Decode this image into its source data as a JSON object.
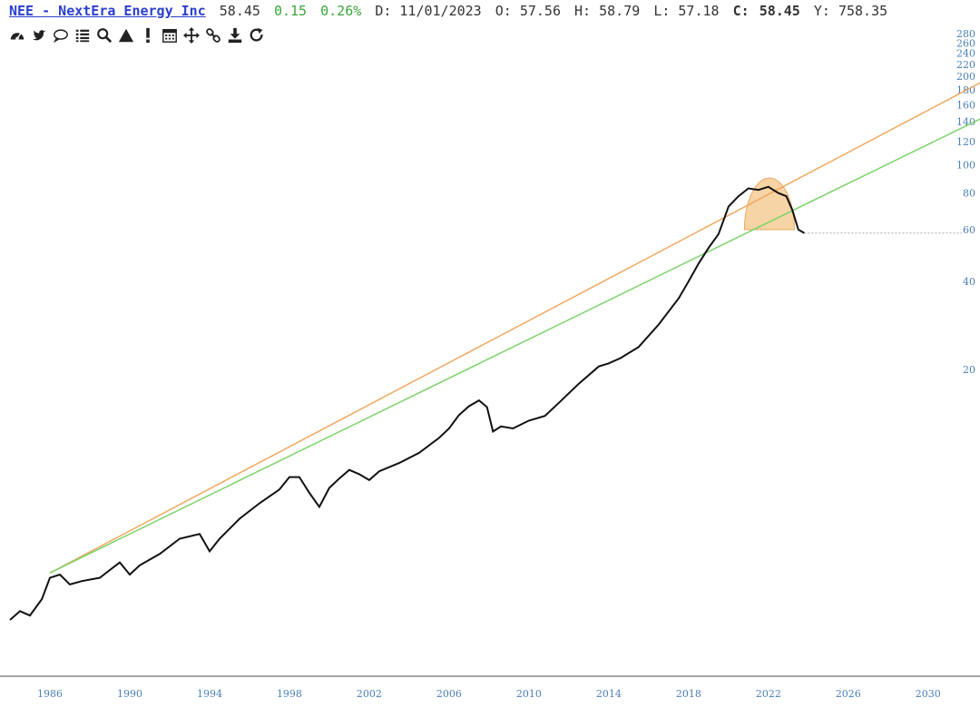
{
  "header": {
    "symbol_title": "NEE - NextEra Energy Inc",
    "last": "58.45",
    "change": "0.15",
    "change_pct": "0.26%",
    "date": "D: 11/01/2023",
    "open": "O: 57.56",
    "high": "H: 58.79",
    "low": "L: 57.18",
    "close_label": "C:",
    "close_value": "58.45",
    "y_readout": "Y: 758.35"
  },
  "toolbar": {
    "icons": [
      "dashboard-icon",
      "twitter-icon",
      "comment-icon",
      "list-icon",
      "search-icon",
      "triangle-icon",
      "exclamation-icon",
      "calendar-icon",
      "move-icon",
      "link-icon",
      "download-icon",
      "refresh-icon"
    ]
  },
  "colors": {
    "price": "#111111",
    "upper_trendline": "#f0a860",
    "lower_trendline": "#7cd36a",
    "top_highlight": "#f5c98f",
    "axis": "#4a7fb5",
    "link": "#2b3fcf",
    "up": "#3aa63a"
  },
  "chart_data": {
    "type": "line",
    "title": "",
    "y_scale": "log",
    "ylim": [
      1.8,
      290
    ],
    "xlim": [
      1983.5,
      2032.6
    ],
    "x_ticks": [
      "1986",
      "1990",
      "1994",
      "1998",
      "2002",
      "2006",
      "2010",
      "2014",
      "2018",
      "2022",
      "2026",
      "2030"
    ],
    "y_ticks": [
      "280",
      "260",
      "240",
      "220",
      "200",
      "180",
      "160",
      "140",
      "120",
      "100",
      "80",
      "60",
      "40",
      "20"
    ],
    "last_price_line": 58.45,
    "series": [
      {
        "x": [
          1984.0,
          1984.5,
          1985.0,
          1985.6,
          1986.0,
          1986.5,
          1987.0,
          1987.6,
          1988.5,
          1989.5,
          1990.0,
          1990.5,
          1991.5,
          1992.5,
          1993.5,
          1994.0,
          1994.5,
          1995.5,
          1996.5,
          1997.5,
          1998.0,
          1998.5,
          1999.0,
          1999.5,
          2000.0,
          2000.5,
          2001.0,
          2001.5,
          2002.0,
          2002.5,
          2003.5,
          2004.5,
          2005.5,
          2006.0,
          2006.5,
          2007.0,
          2007.5,
          2007.9,
          2008.2,
          2008.6,
          2009.2,
          2010.0,
          2010.8,
          2011.5,
          2012.5,
          2013.5,
          2014.0,
          2014.6,
          2015.5,
          2016.5,
          2017.5,
          2018.0,
          2018.5,
          2019.0,
          2019.5,
          2020.0,
          2020.5,
          2021.0,
          2021.5,
          2022.0,
          2022.5,
          2022.9,
          2023.2,
          2023.5,
          2023.8
        ],
        "values": [
          2.8,
          3.0,
          2.9,
          3.3,
          3.9,
          4.0,
          3.7,
          3.8,
          3.9,
          4.4,
          4.0,
          4.3,
          4.7,
          5.3,
          5.5,
          4.8,
          5.3,
          6.2,
          7.0,
          7.8,
          8.6,
          8.6,
          7.6,
          6.8,
          7.9,
          8.5,
          9.1,
          8.8,
          8.4,
          9.0,
          9.6,
          10.4,
          11.7,
          12.6,
          14.0,
          15.0,
          15.7,
          14.9,
          12.3,
          12.8,
          12.6,
          13.4,
          13.9,
          15.4,
          17.9,
          20.5,
          21.0,
          21.9,
          23.9,
          28.5,
          35.0,
          40.0,
          46.0,
          52.0,
          58.0,
          72.0,
          78.0,
          83.0,
          82.0,
          84.0,
          80.0,
          78.0,
          70.0,
          60.0,
          58.45
        ]
      },
      {
        "x": [
          1986.0,
          2032.6
        ],
        "values": [
          4.05,
          190.0
        ]
      },
      {
        "x": [
          1986.0,
          2032.6
        ],
        "values": [
          4.05,
          143.0
        ]
      }
    ],
    "highlight": {
      "x_range": [
        2020.8,
        2023.3
      ],
      "y_range": [
        60,
        90
      ]
    }
  }
}
